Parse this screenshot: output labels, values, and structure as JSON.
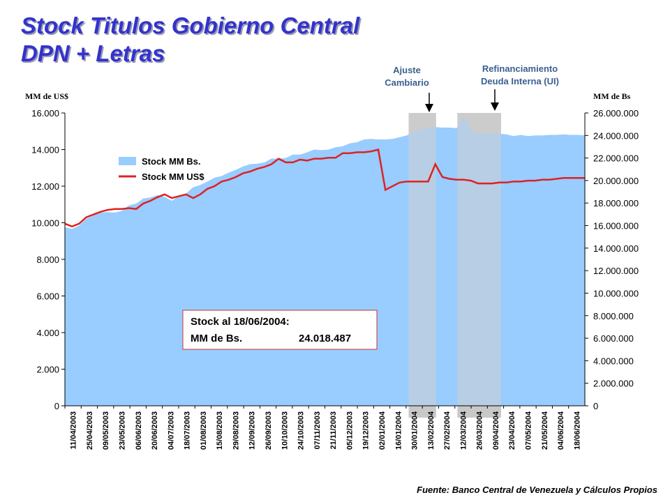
{
  "title": {
    "line1": "Stock Titulos Gobierno Central",
    "line2": "DPN + Letras"
  },
  "annotations": {
    "ajuste": [
      "Ajuste",
      "Cambiario"
    ],
    "refinanciamiento": [
      "Refinanciamiento",
      "Deuda Interna (UI)"
    ],
    "box_line1": "Stock al 18/06/2004:",
    "box_line2_label": "MM de Bs.",
    "box_line2_value": "24.018.487"
  },
  "units": {
    "left": "MM de US$",
    "right": "MM de Bs"
  },
  "source": "Fuente: Banco Central de Venezuela  y Cálculos Propios",
  "colors": {
    "area": "#99ccff",
    "line": "#dd2222",
    "title": "#3333cc",
    "shade": "#c8c8c8",
    "box_border": "#cc3333"
  },
  "chart_data": {
    "type": "area",
    "x_labels": [
      "11/04/2003",
      "25/04/2003",
      "09/05/2003",
      "23/05/2003",
      "06/06/2003",
      "20/06/2003",
      "04/07/2003",
      "18/07/2003",
      "01/08/2003",
      "15/08/2003",
      "29/08/2003",
      "12/09/2003",
      "26/09/2003",
      "10/10/2003",
      "24/10/2003",
      "07/11/2003",
      "21/11/2003",
      "05/12/2003",
      "19/12/2003",
      "02/01/2004",
      "16/01/2004",
      "30/01/2004",
      "13/02/2004",
      "27/02/2004",
      "12/03/2004",
      "26/03/2004",
      "09/04/2004",
      "23/04/2004",
      "07/05/2004",
      "21/05/2004",
      "04/06/2004",
      "18/06/2004"
    ],
    "y_left": {
      "label": "MM de US$",
      "min": 0,
      "max": 16000,
      "ticks": [
        "0",
        "2.000",
        "4.000",
        "6.000",
        "8.000",
        "10.000",
        "12.000",
        "14.000",
        "16.000"
      ]
    },
    "y_right": {
      "label": "MM de Bs",
      "min": 0,
      "max": 26000000,
      "ticks": [
        "0",
        "2.000.000",
        "4.000.000",
        "6.000.000",
        "8.000.000",
        "10.000.000",
        "12.000.000",
        "14.000.000",
        "16.000.000",
        "18.000.000",
        "20.000.000",
        "22.000.000",
        "24.000.000",
        "26.000.000"
      ]
    },
    "legend": {
      "position": "top-left",
      "entries": [
        "Stock MM Bs.",
        "Stock MM US$"
      ]
    },
    "series": [
      {
        "name": "Stock MM Bs.",
        "axis": "right",
        "type": "area",
        "values": [
          15850000,
          15700000,
          16000000,
          16600000,
          16900000,
          17150000,
          17200000,
          17150000,
          17300000,
          17800000,
          17950000,
          18400000,
          18500000,
          18700000,
          18550000,
          18200000,
          18600000,
          18850000,
          19400000,
          19600000,
          19900000,
          20250000,
          20400000,
          20700000,
          20950000,
          21250000,
          21450000,
          21500000,
          21600000,
          21950000,
          21950000,
          22000000,
          22300000,
          22300000,
          22500000,
          22750000,
          22700000,
          22750000,
          22950000,
          23050000,
          23300000,
          23400000,
          23650000,
          23700000,
          23650000,
          23650000,
          23700000,
          23850000,
          24000000,
          24300000,
          24550000,
          24700000,
          24750000,
          24700000,
          24700000,
          24650000,
          25700000,
          24550000,
          24150000,
          24200000,
          24200000,
          24150000,
          24100000,
          23950000,
          24050000,
          23950000,
          24000000,
          24000000,
          24050000,
          24050000,
          24100000,
          24050000,
          24050000,
          24018487
        ]
      },
      {
        "name": "Stock MM US$",
        "axis": "left",
        "type": "line",
        "values": [
          9950,
          9800,
          9950,
          10300,
          10450,
          10600,
          10700,
          10750,
          10750,
          10800,
          10750,
          11050,
          11200,
          11400,
          11550,
          11350,
          11450,
          11550,
          11350,
          11550,
          11850,
          12000,
          12250,
          12350,
          12500,
          12700,
          12800,
          12950,
          13050,
          13200,
          13500,
          13300,
          13300,
          13450,
          13400,
          13500,
          13500,
          13550,
          13550,
          13800,
          13800,
          13850,
          13850,
          13900,
          14000,
          11800,
          12000,
          12200,
          12250,
          12250,
          12250,
          12250,
          13200,
          12500,
          12400,
          12350,
          12350,
          12300,
          12150,
          12150,
          12150,
          12200,
          12200,
          12250,
          12250,
          12300,
          12300,
          12350,
          12350,
          12400,
          12450,
          12450,
          12450,
          12450
        ]
      }
    ],
    "shaded_periods": [
      [
        "30/01/2004",
        "13/02/2004"
      ],
      [
        "12/03/2004",
        "09/04/2004"
      ]
    ]
  }
}
